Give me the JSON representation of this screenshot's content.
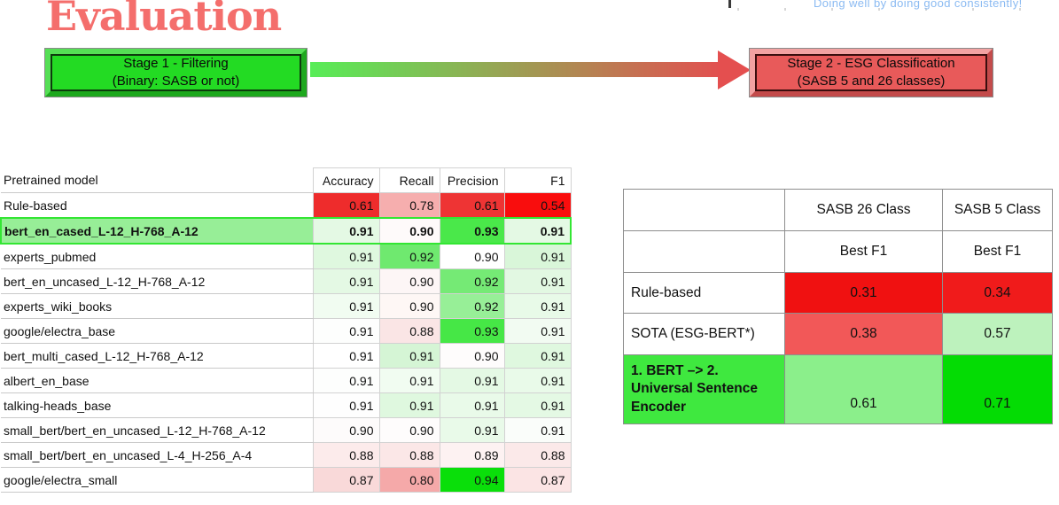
{
  "slide": {
    "title": "Evaluation",
    "tagline": "Doing well by doing good consistently!"
  },
  "flow": {
    "stage1_line1": "Stage 1 - Filtering",
    "stage1_line2": "(Binary: SASB or not)",
    "stage2_line1": "Stage 2 - ESG Classification",
    "stage2_line2": "(SASB 5 and 26 classes)",
    "arrow_from_color": "#57ED57",
    "arrow_to_color": "#E25050"
  },
  "chart_data": [
    {
      "type": "table",
      "name": "stage1-filtering-results",
      "columns": [
        "Pretrained model",
        "Accuracy",
        "Recall",
        "Precision",
        "F1"
      ],
      "rows": [
        {
          "model": "Rule-based",
          "highlight": false,
          "values": [
            "0.61",
            "0.78",
            "0.61",
            "0.54"
          ],
          "cell_colors": [
            "#EE2C2C",
            "#F6AEAE",
            "#EE3434",
            "#F90D0D"
          ]
        },
        {
          "model": "bert_en_cased_L-12_H-768_A-12",
          "highlight": true,
          "values": [
            "0.91",
            "0.90",
            "0.93",
            "0.91"
          ],
          "cell_colors": [
            "#E4F9E4",
            "#FEFAFA",
            "#4AE84A",
            "#E4F9E4"
          ]
        },
        {
          "model": "experts_pubmed",
          "highlight": false,
          "values": [
            "0.91",
            "0.92",
            "0.90",
            "0.91"
          ],
          "cell_colors": [
            "#DFF8DF",
            "#6FE96F",
            "#FFFFFF",
            "#D9F6D9"
          ]
        },
        {
          "model": "bert_en_uncased_L-12_H-768_A-12",
          "highlight": false,
          "values": [
            "0.91",
            "0.90",
            "0.92",
            "0.91"
          ],
          "cell_colors": [
            "#E4F9E4",
            "#FDF6F6",
            "#75EA75",
            "#E2F8E2"
          ]
        },
        {
          "model": "experts_wiki_books",
          "highlight": false,
          "values": [
            "0.91",
            "0.90",
            "0.92",
            "0.91"
          ],
          "cell_colors": [
            "#F1FCF1",
            "#FEF7F5",
            "#97EF97",
            "#E8FAE8"
          ]
        },
        {
          "model": "google/electra_base",
          "highlight": false,
          "values": [
            "0.91",
            "0.88",
            "0.93",
            "0.91"
          ],
          "cell_colors": [
            "#FDFEFD",
            "#FAE5E5",
            "#46E746",
            "#F2FBF2"
          ]
        },
        {
          "model": "bert_multi_cased_L-12_H-768_A-12",
          "highlight": false,
          "values": [
            "0.91",
            "0.91",
            "0.90",
            "0.91"
          ],
          "cell_colors": [
            "#FFFFFF",
            "#D5F5D5",
            "#FEFCFC",
            "#DFF8DF"
          ]
        },
        {
          "model": "albert_en_base",
          "highlight": false,
          "values": [
            "0.91",
            "0.91",
            "0.91",
            "0.91"
          ],
          "cell_colors": [
            "#FDFEFD",
            "#F1FCF1",
            "#E4F9E4",
            "#E9FAE9"
          ]
        },
        {
          "model": "talking-heads_base",
          "highlight": false,
          "values": [
            "0.91",
            "0.91",
            "0.91",
            "0.91"
          ],
          "cell_colors": [
            "#FEFEFE",
            "#DFF8DF",
            "#E9FAE9",
            "#E4F9E4"
          ]
        },
        {
          "model": "small_bert/bert_en_uncased_L-12_H-768_A-12",
          "highlight": false,
          "values": [
            "0.90",
            "0.90",
            "0.91",
            "0.91"
          ],
          "cell_colors": [
            "#FDFBFB",
            "#FEFCFC",
            "#E9FAE9",
            "#FAFDFA"
          ]
        },
        {
          "model": "small_bert/bert_en_uncased_L-4_H-256_A-4",
          "highlight": false,
          "values": [
            "0.88",
            "0.88",
            "0.89",
            "0.88"
          ],
          "cell_colors": [
            "#FCEBEB",
            "#FBE7E7",
            "#FDF2F2",
            "#FBE9E9"
          ]
        },
        {
          "model": "google/electra_small",
          "highlight": false,
          "values": [
            "0.87",
            "0.80",
            "0.94",
            "0.87"
          ],
          "cell_colors": [
            "#F9D9D9",
            "#F5A9A9",
            "#0ADF0A",
            "#FBE4E4"
          ]
        }
      ]
    },
    {
      "type": "table",
      "name": "stage2-esg-classification-results",
      "columns": [
        "",
        "SASB 26 Class",
        "SASB 5 Class"
      ],
      "subheader": [
        "",
        "Best F1",
        "Best F1"
      ],
      "rows": [
        {
          "model": "Rule-based",
          "highlight": false,
          "label_bg": "#FFFFFF",
          "values": [
            "0.31",
            "0.34"
          ],
          "cell_colors": [
            "#F01111",
            "#F01B1B"
          ]
        },
        {
          "model": "SOTA (ESG-BERT*)",
          "highlight": false,
          "label_bg": "#FFFFFF",
          "values": [
            "0.38",
            "0.57"
          ],
          "cell_colors": [
            "#F25858",
            "#BDF2BD"
          ]
        },
        {
          "model": "1. BERT –> 2. Universal Sentence Encoder",
          "highlight": true,
          "label_bg": "#3FE83F",
          "values": [
            "0.61",
            "0.71"
          ],
          "cell_colors": [
            "#8BEF8B",
            "#04DC04"
          ]
        }
      ]
    }
  ]
}
